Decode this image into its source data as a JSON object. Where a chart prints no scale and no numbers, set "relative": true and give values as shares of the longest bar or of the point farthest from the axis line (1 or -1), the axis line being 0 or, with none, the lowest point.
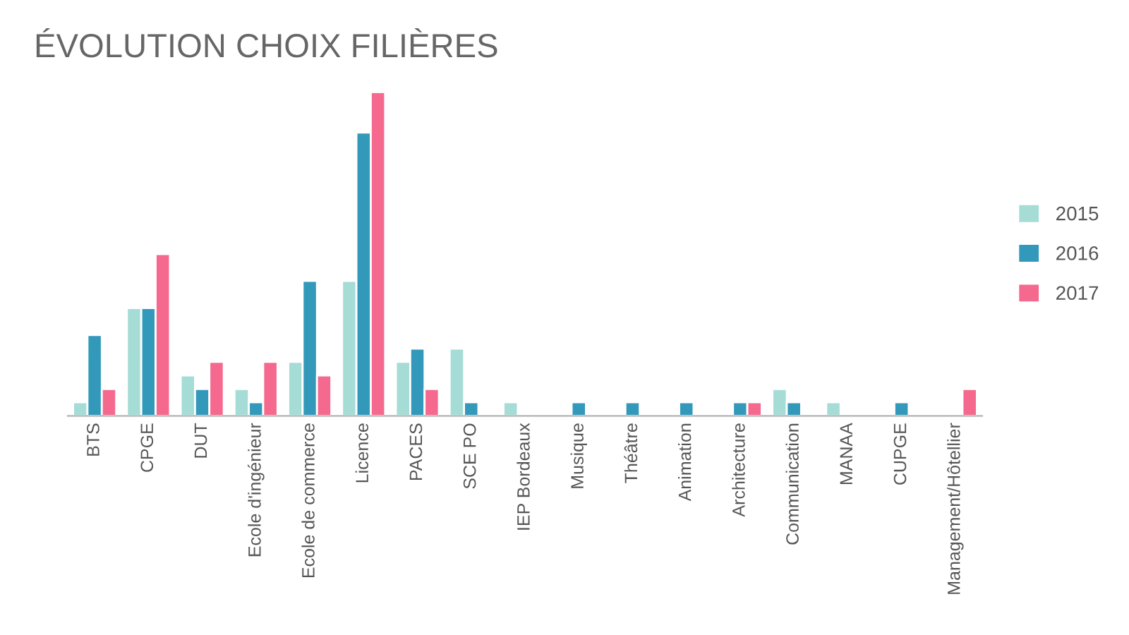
{
  "chart_data": {
    "type": "bar",
    "title": "ÉVOLUTION CHOIX FILIÈRES",
    "relative": true,
    "legend": "right",
    "grid": false,
    "categories": [
      "BTS",
      "CPGE",
      "DUT",
      "Ecole d'ingénieur",
      "Ecole de commerce",
      "Licence",
      "PACES",
      "SCE PO",
      "IEP Bordeaux",
      "Musique",
      "Théâtre",
      "Animation",
      "Architecture",
      "Communication",
      "MANAA",
      "CUPGE",
      "Management/Hôtellier"
    ],
    "series": [
      {
        "name": "2015",
        "color": "#a6dcd6",
        "values": [
          0.042,
          0.333,
          0.125,
          0.083,
          0.167,
          0.417,
          0.167,
          0.208,
          0.042,
          null,
          null,
          null,
          null,
          0.083,
          0.042,
          null,
          null
        ]
      },
      {
        "name": "2016",
        "color": "#3399bb",
        "values": [
          0.25,
          0.333,
          0.083,
          0.042,
          0.417,
          0.875,
          0.208,
          0.042,
          null,
          0.042,
          0.042,
          0.042,
          0.042,
          0.042,
          null,
          0.042,
          null
        ]
      },
      {
        "name": "2017",
        "color": "#f5698f",
        "values": [
          0.083,
          0.5,
          0.167,
          0.167,
          0.125,
          1,
          0.083,
          null,
          null,
          null,
          null,
          null,
          0.042,
          null,
          null,
          null,
          0.083
        ]
      }
    ]
  }
}
